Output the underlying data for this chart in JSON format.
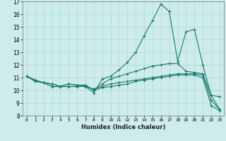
{
  "xlabel": "Humidex (Indice chaleur)",
  "bg_color": "#ceecea",
  "line_color": "#1a7a6e",
  "grid_color": "#aad8d4",
  "xlim": [
    -0.5,
    23.5
  ],
  "ylim": [
    8,
    17
  ],
  "xticks": [
    0,
    1,
    2,
    3,
    4,
    5,
    6,
    7,
    8,
    9,
    10,
    11,
    12,
    13,
    14,
    15,
    16,
    17,
    18,
    19,
    20,
    21,
    22,
    23
  ],
  "yticks": [
    8,
    9,
    10,
    11,
    12,
    13,
    14,
    15,
    16,
    17
  ],
  "series": [
    [
      11.1,
      10.7,
      10.6,
      10.3,
      10.3,
      10.5,
      10.4,
      10.3,
      9.8,
      10.9,
      11.1,
      11.6,
      12.2,
      13.0,
      14.3,
      15.5,
      16.8,
      16.2,
      12.3,
      14.6,
      14.8,
      12.0,
      9.6,
      9.5
    ],
    [
      11.1,
      10.7,
      10.6,
      10.3,
      10.3,
      10.5,
      10.4,
      10.4,
      10.0,
      10.5,
      10.9,
      11.1,
      11.3,
      11.5,
      11.7,
      11.9,
      12.0,
      12.1,
      12.1,
      11.5,
      11.4,
      11.3,
      9.6,
      8.5
    ],
    [
      11.1,
      10.8,
      10.6,
      10.5,
      10.3,
      10.3,
      10.3,
      10.3,
      10.1,
      10.3,
      10.5,
      10.6,
      10.7,
      10.8,
      10.9,
      11.0,
      11.1,
      11.2,
      11.3,
      11.3,
      11.3,
      11.2,
      9.2,
      8.5
    ],
    [
      11.1,
      10.8,
      10.6,
      10.5,
      10.3,
      10.3,
      10.3,
      10.4,
      10.0,
      10.2,
      10.3,
      10.4,
      10.5,
      10.7,
      10.8,
      10.9,
      11.0,
      11.1,
      11.2,
      11.2,
      11.2,
      11.0,
      8.8,
      8.4
    ]
  ]
}
